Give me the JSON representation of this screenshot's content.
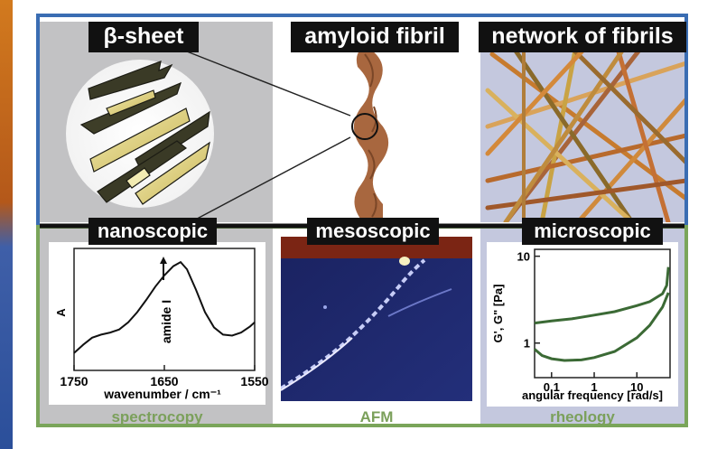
{
  "colors": {
    "frame_blue": "#3a6db3",
    "frame_green": "#7aa55a",
    "panel_gray": "#c2c2c4",
    "panel_lavender": "#c4c8de",
    "caption_green": "#7ba05b",
    "curve_green": "#3b6a35",
    "afm_blue": "#1f2a6b",
    "afm_top": "#7b2514",
    "fibril_brown": "#a8673f"
  },
  "labels": {
    "beta_sheet": "β-sheet",
    "amyloid_fibril": "amyloid fibril",
    "network": "network of fibrils",
    "nanoscopic": "nanoscopic",
    "mesoscopic": "mesoscopic",
    "microscopic": "microscopic"
  },
  "captions": {
    "spectroscopy": "spectrocopy",
    "afm": "AFM",
    "rheology": "rheology"
  },
  "icons": [
    "beta-sheet-ribbon",
    "twisted-fibril",
    "fibril-network",
    "afm-image"
  ],
  "chart_data": [
    {
      "type": "line",
      "xlabel": "wavenumber / cm⁻¹",
      "ylabel": "A",
      "xlim": [
        1750,
        1550
      ],
      "x_ticks": [
        "1750",
        "1650",
        "1550"
      ],
      "annotation": "amide I",
      "series": [
        {
          "x": [
            1750,
            1740,
            1730,
            1720,
            1710,
            1700,
            1690,
            1680,
            1670,
            1660,
            1650,
            1640,
            1632,
            1625,
            1615,
            1605,
            1595,
            1585,
            1575,
            1565,
            1555,
            1550
          ],
          "values": [
            0.1,
            0.18,
            0.25,
            0.28,
            0.3,
            0.33,
            0.4,
            0.5,
            0.62,
            0.75,
            0.86,
            0.95,
            0.99,
            0.92,
            0.72,
            0.5,
            0.35,
            0.28,
            0.27,
            0.3,
            0.36,
            0.4
          ]
        }
      ]
    },
    {
      "type": "line",
      "xlabel": "angular frequency [rad/s]",
      "ylabel": "G', G\" [Pa]",
      "x_scale": "log",
      "y_scale": "log",
      "xlim": [
        0.04,
        60
      ],
      "ylim": [
        0.4,
        12
      ],
      "x_ticks": [
        "0.1",
        "1",
        "10"
      ],
      "y_ticks": [
        "1",
        "10"
      ],
      "series": [
        {
          "x": [
            0.04,
            0.1,
            0.3,
            1,
            3,
            10,
            20,
            40,
            50,
            55
          ],
          "values": [
            1.7,
            1.8,
            1.9,
            2.1,
            2.3,
            2.7,
            3.0,
            3.7,
            4.6,
            7.5
          ]
        },
        {
          "x": [
            0.04,
            0.06,
            0.1,
            0.2,
            0.5,
            1,
            3,
            10,
            20,
            40,
            55
          ],
          "values": [
            0.85,
            0.72,
            0.66,
            0.63,
            0.64,
            0.68,
            0.8,
            1.15,
            1.6,
            2.6,
            3.8
          ]
        }
      ]
    }
  ]
}
